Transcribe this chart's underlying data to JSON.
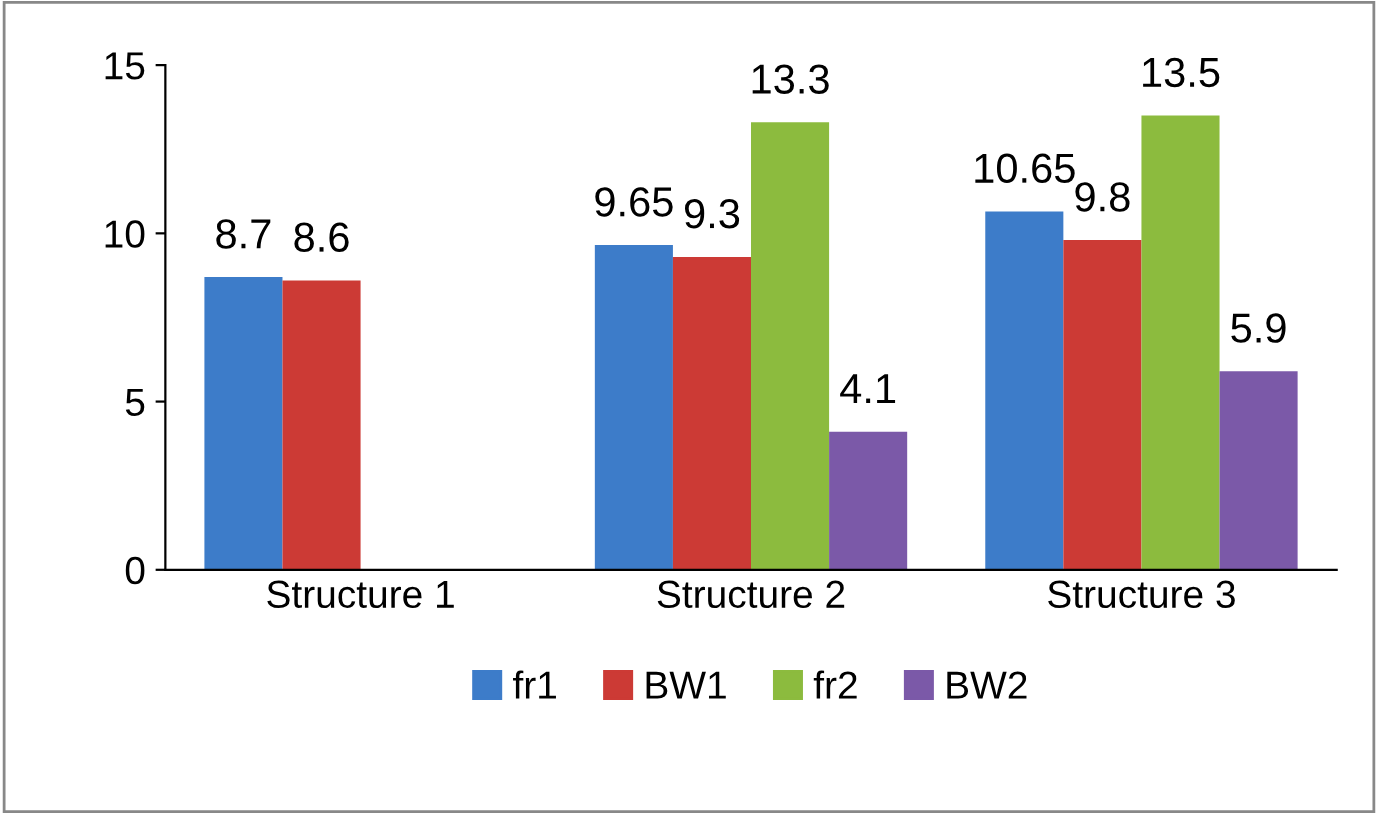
{
  "chart_data": {
    "type": "bar",
    "categories": [
      "Structure 1",
      "Structure 2",
      "Structure 3"
    ],
    "series": [
      {
        "name": "fr1",
        "color": "#3d7cc9",
        "values": [
          8.7,
          9.65,
          10.65
        ]
      },
      {
        "name": "BW1",
        "color": "#cc3a35",
        "values": [
          8.6,
          9.3,
          9.8
        ]
      },
      {
        "name": "fr2",
        "color": "#8cbb3e",
        "values": [
          null,
          13.3,
          13.5
        ]
      },
      {
        "name": "BW2",
        "color": "#7b59a8",
        "values": [
          null,
          4.1,
          5.9
        ]
      }
    ],
    "ylim": [
      0,
      15
    ],
    "yticks": [
      0,
      5,
      10,
      15
    ],
    "grid": false,
    "legend": "bottom",
    "data_labels": true
  }
}
